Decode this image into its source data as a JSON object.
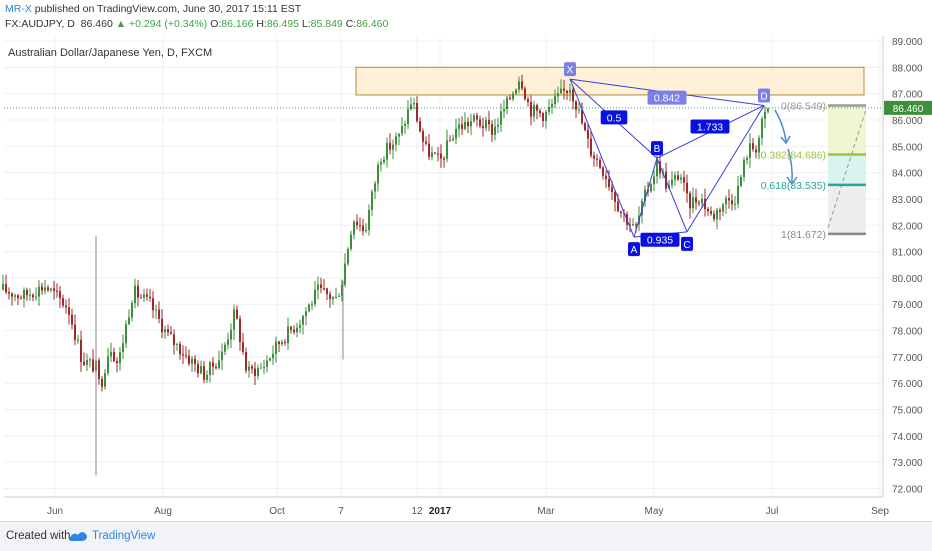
{
  "header": {
    "author": "MR-X",
    "published": "published on TradingView.com, June 30, 2017 15:11 EST",
    "symbol": "FX:AUDJPY, D",
    "last": "86.460",
    "change": "+0.294 (+0.34%)",
    "open_label": "O:",
    "open": "86.166",
    "high_label": "H:",
    "high": "86.495",
    "low_label": "L:",
    "low": "85.849",
    "close_label": "C:",
    "close": "86.460"
  },
  "footer": {
    "created_with": "Created with",
    "brand": "TradingView"
  },
  "chart_data": {
    "type": "candlestick",
    "title": "Australian Dollar/Japanese Yen, D, FXCM",
    "x_ticks": [
      "Jun",
      "Aug",
      "Oct",
      "7",
      "12",
      "2017",
      "Mar",
      "May",
      "Jul",
      "Sep"
    ],
    "ylim": [
      71.6,
      89.2
    ],
    "y_ticks": [
      "89.000",
      "88.000",
      "87.000",
      "86.000",
      "85.000",
      "84.000",
      "83.000",
      "82.000",
      "81.000",
      "80.000",
      "79.000",
      "78.000",
      "77.000",
      "76.000",
      "75.000",
      "74.000",
      "73.000",
      "72.000"
    ],
    "last_price_label": "86.460",
    "last_price": 86.46,
    "colors": {
      "up": "#3d8f3d",
      "down": "#a02828",
      "pattern": "#3a3dd8",
      "label_bg": "#0a10e0"
    },
    "price_path": [
      [
        0,
        79.6
      ],
      [
        22,
        79.3
      ],
      [
        45,
        79.7
      ],
      [
        68,
        78.9
      ],
      [
        82,
        76.9
      ],
      [
        96,
        76.6
      ],
      [
        100,
        75.8
      ],
      [
        110,
        77.5
      ],
      [
        118,
        76.7
      ],
      [
        133,
        79.5
      ],
      [
        150,
        79.0
      ],
      [
        168,
        77.8
      ],
      [
        190,
        76.9
      ],
      [
        205,
        76.3
      ],
      [
        222,
        77.1
      ],
      [
        235,
        78.7
      ],
      [
        247,
        76.4
      ],
      [
        262,
        76.6
      ],
      [
        280,
        77.6
      ],
      [
        300,
        78.4
      ],
      [
        318,
        79.5
      ],
      [
        336,
        79.2
      ],
      [
        342,
        79.9
      ],
      [
        353,
        82.3
      ],
      [
        365,
        81.8
      ],
      [
        380,
        84.6
      ],
      [
        400,
        85.4
      ],
      [
        412,
        86.8
      ],
      [
        425,
        84.9
      ],
      [
        440,
        84.4
      ],
      [
        456,
        85.7
      ],
      [
        475,
        86.0
      ],
      [
        493,
        85.6
      ],
      [
        507,
        86.6
      ],
      [
        520,
        87.7
      ],
      [
        530,
        86.4
      ],
      [
        545,
        86.2
      ],
      [
        557,
        86.8
      ],
      [
        570,
        87.3
      ],
      [
        577,
        86.5
      ],
      [
        590,
        84.9
      ],
      [
        605,
        84.0
      ],
      [
        620,
        82.6
      ],
      [
        635,
        81.8
      ],
      [
        645,
        83.1
      ],
      [
        658,
        84.4
      ],
      [
        668,
        83.4
      ],
      [
        680,
        84.0
      ],
      [
        688,
        82.8
      ],
      [
        700,
        83.1
      ],
      [
        712,
        82.3
      ],
      [
        724,
        82.9
      ],
      [
        736,
        83.1
      ],
      [
        748,
        84.9
      ],
      [
        757,
        85.0
      ],
      [
        763,
        86.0
      ],
      [
        768,
        86.4
      ]
    ],
    "spikes": [
      {
        "x": 96,
        "high": 81.6,
        "low": 72.5
      },
      {
        "x": 343,
        "high": 79.9,
        "low": 76.9
      }
    ],
    "supply_zone": {
      "x_start": 356,
      "x_end": 864,
      "low": 86.95,
      "high": 88.0
    },
    "harmonic_pattern": {
      "points": [
        {
          "label": "X",
          "x": 570,
          "price": 87.55
        },
        {
          "label": "A",
          "x": 634,
          "price": 81.55
        },
        {
          "label": "B",
          "x": 657,
          "price": 84.55
        },
        {
          "label": "C",
          "x": 687,
          "price": 81.75
        },
        {
          "label": "D",
          "x": 764,
          "price": 86.55
        }
      ],
      "ratios": [
        {
          "text": "0.5",
          "x": 614,
          "price": 86.1
        },
        {
          "text": "0.842",
          "x": 667,
          "price": 86.85
        },
        {
          "text": "1.733",
          "x": 710,
          "price": 85.75
        },
        {
          "text": "0.935",
          "x": 660,
          "price": 81.45
        }
      ]
    },
    "fib_levels": [
      {
        "ratio": "0",
        "label": "0(86.549)",
        "price": 86.549,
        "color": "#9a9a9a"
      },
      {
        "ratio": "0.382",
        "label": "0.382(84.686)",
        "price": 84.686,
        "color": "#9ac43a"
      },
      {
        "ratio": "0.618",
        "label": "0.618(83.535)",
        "price": 83.535,
        "color": "#26a69a"
      },
      {
        "ratio": "1",
        "label": "1(81.672)",
        "price": 81.672,
        "color": "#888888"
      }
    ]
  }
}
